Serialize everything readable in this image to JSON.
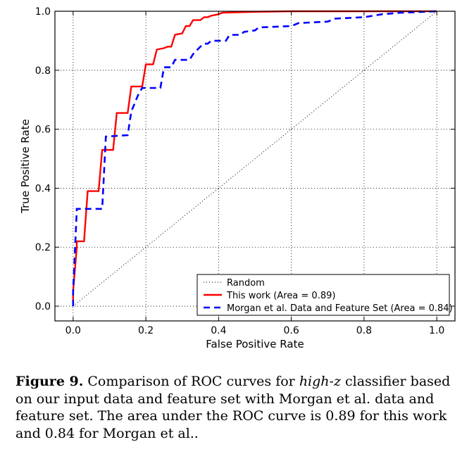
{
  "chart_data": {
    "type": "line",
    "xlabel": "False Positive Rate",
    "ylabel": "True Positive Rate",
    "xlim": [
      -0.05,
      1.05
    ],
    "ylim": [
      -0.05,
      1.0
    ],
    "xticks": [
      "0.0",
      "0.2",
      "0.4",
      "0.6",
      "0.8",
      "1.0"
    ],
    "xtick_values": [
      0.0,
      0.2,
      0.4,
      0.6,
      0.8,
      1.0
    ],
    "yticks": [
      "0.0",
      "0.2",
      "0.4",
      "0.6",
      "0.8",
      "1.0"
    ],
    "ytick_values": [
      0.0,
      0.2,
      0.4,
      0.6,
      0.8,
      1.0
    ],
    "grid": true,
    "legend_position": "bottom-right",
    "series": [
      {
        "name": "Random",
        "style": "dotted",
        "color": "#000000",
        "x": [
          0.0,
          1.0
        ],
        "y": [
          0.0,
          1.0
        ]
      },
      {
        "name": "This work (Area = 0.89)",
        "style": "solid",
        "color": "#ff0000",
        "x": [
          0.0,
          0.0,
          0.01,
          0.01,
          0.03,
          0.04,
          0.07,
          0.08,
          0.11,
          0.12,
          0.15,
          0.16,
          0.19,
          0.2,
          0.22,
          0.23,
          0.25,
          0.26,
          0.27,
          0.28,
          0.3,
          0.31,
          0.32,
          0.33,
          0.35,
          0.36,
          0.37,
          0.38,
          0.4,
          0.41,
          0.5,
          0.6,
          1.0
        ],
        "y": [
          0.0,
          0.05,
          0.2,
          0.22,
          0.22,
          0.39,
          0.39,
          0.53,
          0.53,
          0.655,
          0.655,
          0.745,
          0.745,
          0.82,
          0.82,
          0.87,
          0.875,
          0.88,
          0.88,
          0.92,
          0.925,
          0.95,
          0.95,
          0.97,
          0.97,
          0.98,
          0.98,
          0.985,
          0.99,
          0.995,
          0.998,
          1.0,
          1.0
        ]
      },
      {
        "name": "Morgan et al. Data and Feature Set (Area = 0.84)",
        "style": "dashed",
        "color": "#0000ff",
        "x": [
          0.0,
          0.0,
          0.01,
          0.01,
          0.08,
          0.09,
          0.15,
          0.16,
          0.18,
          0.19,
          0.24,
          0.25,
          0.27,
          0.28,
          0.32,
          0.33,
          0.35,
          0.36,
          0.37,
          0.38,
          0.42,
          0.43,
          0.46,
          0.47,
          0.5,
          0.51,
          0.6,
          0.62,
          0.7,
          0.72,
          0.8,
          0.85,
          0.9,
          1.0
        ],
        "y": [
          0.0,
          0.05,
          0.325,
          0.33,
          0.33,
          0.575,
          0.58,
          0.66,
          0.72,
          0.74,
          0.74,
          0.81,
          0.81,
          0.835,
          0.835,
          0.855,
          0.88,
          0.89,
          0.89,
          0.9,
          0.9,
          0.92,
          0.92,
          0.93,
          0.935,
          0.945,
          0.95,
          0.96,
          0.965,
          0.975,
          0.98,
          0.99,
          0.995,
          1.0
        ]
      }
    ]
  },
  "caption": {
    "label": "Figure 9.",
    "text_before": " Comparison of ROC curves for ",
    "emph": "high-z",
    "text_after": " classifier based on our input data and feature set with Morgan et al. data and feature set. The area under the ROC curve is 0.89 for this work and 0.84 for Morgan et al.."
  }
}
